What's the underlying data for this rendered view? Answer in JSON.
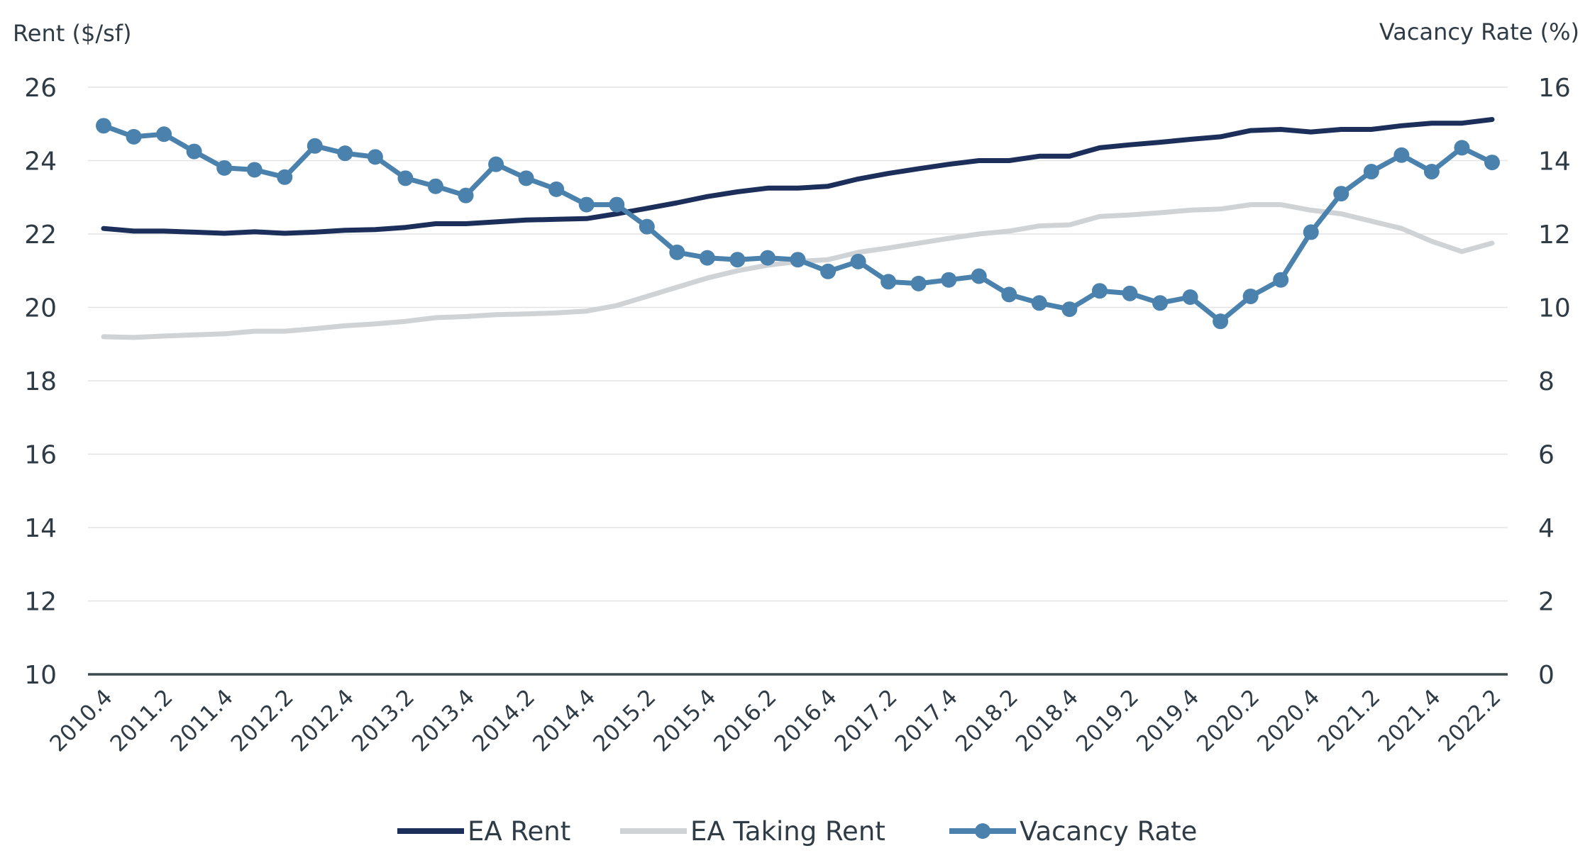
{
  "chart_data": {
    "type": "line",
    "left_axis_title": "Rent ($/sf)",
    "right_axis_title": "Vacancy Rate (%)",
    "left_ylim": [
      10,
      26
    ],
    "right_ylim": [
      0,
      16
    ],
    "left_ticks": [
      "10",
      "12",
      "14",
      "16",
      "18",
      "20",
      "22",
      "24",
      "26"
    ],
    "right_ticks": [
      "0",
      "2",
      "4",
      "6",
      "8",
      "10",
      "12",
      "14",
      "16"
    ],
    "grid": true,
    "legend_position": "bottom",
    "x": [
      "2010.4",
      "2011.1",
      "2011.2",
      "2011.3",
      "2011.4",
      "2012.1",
      "2012.2",
      "2012.3",
      "2012.4",
      "2013.1",
      "2013.2",
      "2013.3",
      "2013.4",
      "2014.1",
      "2014.2",
      "2014.3",
      "2014.4",
      "2015.1",
      "2015.2",
      "2015.3",
      "2015.4",
      "2016.1",
      "2016.2",
      "2016.3",
      "2016.4",
      "2017.1",
      "2017.2",
      "2017.3",
      "2017.4",
      "2018.1",
      "2018.2",
      "2018.3",
      "2018.4",
      "2019.1",
      "2019.2",
      "2019.3",
      "2019.4",
      "2020.1",
      "2020.2",
      "2020.3",
      "2020.4",
      "2021.1",
      "2021.2",
      "2021.3",
      "2021.4",
      "2022.1",
      "2022.2"
    ],
    "x_tick_labels": [
      "2010.4",
      "2011.2",
      "2011.4",
      "2012.2",
      "2012.4",
      "2013.2",
      "2013.4",
      "2014.2",
      "2014.4",
      "2015.2",
      "2015.4",
      "2016.2",
      "2016.4",
      "2017.2",
      "2017.4",
      "2018.2",
      "2018.4",
      "2019.2",
      "2019.4",
      "2020.2",
      "2020.4",
      "2021.2",
      "2021.4",
      "2022.2"
    ],
    "series": [
      {
        "name": "EA Rent",
        "axis": "left",
        "color": "#1c2f5a",
        "values": [
          22.15,
          22.08,
          22.08,
          22.05,
          22.02,
          22.06,
          22.02,
          22.05,
          22.1,
          22.12,
          22.18,
          22.28,
          22.28,
          22.33,
          22.38,
          22.4,
          22.42,
          22.55,
          22.7,
          22.85,
          23.02,
          23.15,
          23.25,
          23.25,
          23.3,
          23.5,
          23.65,
          23.78,
          23.9,
          24.0,
          24.0,
          24.12,
          24.12,
          24.35,
          24.43,
          24.5,
          24.58,
          24.65,
          24.82,
          24.85,
          24.78,
          24.85,
          24.85,
          24.95,
          25.02,
          25.02,
          25.12
        ]
      },
      {
        "name": "EA Taking Rent",
        "axis": "left",
        "color": "#cfd3d6",
        "values": [
          19.2,
          19.18,
          19.22,
          19.25,
          19.28,
          19.35,
          19.35,
          19.42,
          19.5,
          19.55,
          19.62,
          19.72,
          19.75,
          19.8,
          19.82,
          19.85,
          19.9,
          20.05,
          20.3,
          20.55,
          20.8,
          21.0,
          21.15,
          21.25,
          21.3,
          21.5,
          21.62,
          21.75,
          21.88,
          22.0,
          22.08,
          22.22,
          22.25,
          22.48,
          22.52,
          22.58,
          22.65,
          22.68,
          22.8,
          22.8,
          22.65,
          22.55,
          22.35,
          22.15,
          21.8,
          21.52,
          21.75
        ]
      },
      {
        "name": "Vacancy Rate",
        "axis": "right",
        "color": "#4a82ad",
        "markers": true,
        "values": [
          14.95,
          14.65,
          14.72,
          14.25,
          13.8,
          13.75,
          13.55,
          14.4,
          14.2,
          14.1,
          13.52,
          13.3,
          13.05,
          13.9,
          13.52,
          13.22,
          12.8,
          12.8,
          12.2,
          11.5,
          11.35,
          11.3,
          11.35,
          11.3,
          10.98,
          11.25,
          10.7,
          10.65,
          10.75,
          10.85,
          10.35,
          10.12,
          9.95,
          10.45,
          10.38,
          10.12,
          10.28,
          9.62,
          10.3,
          10.75,
          12.05,
          13.1,
          13.7,
          14.15,
          13.7,
          14.35,
          13.95
        ]
      }
    ]
  }
}
